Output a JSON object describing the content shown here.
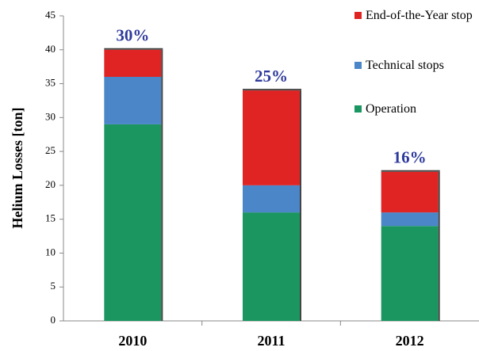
{
  "chart_data": {
    "type": "stacked_bar",
    "ylabel": "Helium Losses [ton]",
    "categories": [
      "2010",
      "2011",
      "2012"
    ],
    "series": [
      {
        "name": "Operation",
        "color": "#1b9660",
        "values": [
          29,
          16,
          14
        ]
      },
      {
        "name": "Technical stops",
        "color": "#4a86c8",
        "values": [
          7,
          4,
          2
        ]
      },
      {
        "name": "End-of-the-Year stop",
        "color": "#e02424",
        "values": [
          4,
          14,
          6
        ]
      }
    ],
    "annotations": [
      "30%",
      "25%",
      "16%"
    ],
    "ylim": [
      0,
      45
    ],
    "yticks": [
      0,
      5,
      10,
      15,
      20,
      25,
      30,
      35,
      40,
      45
    ],
    "legend": "top-right"
  }
}
